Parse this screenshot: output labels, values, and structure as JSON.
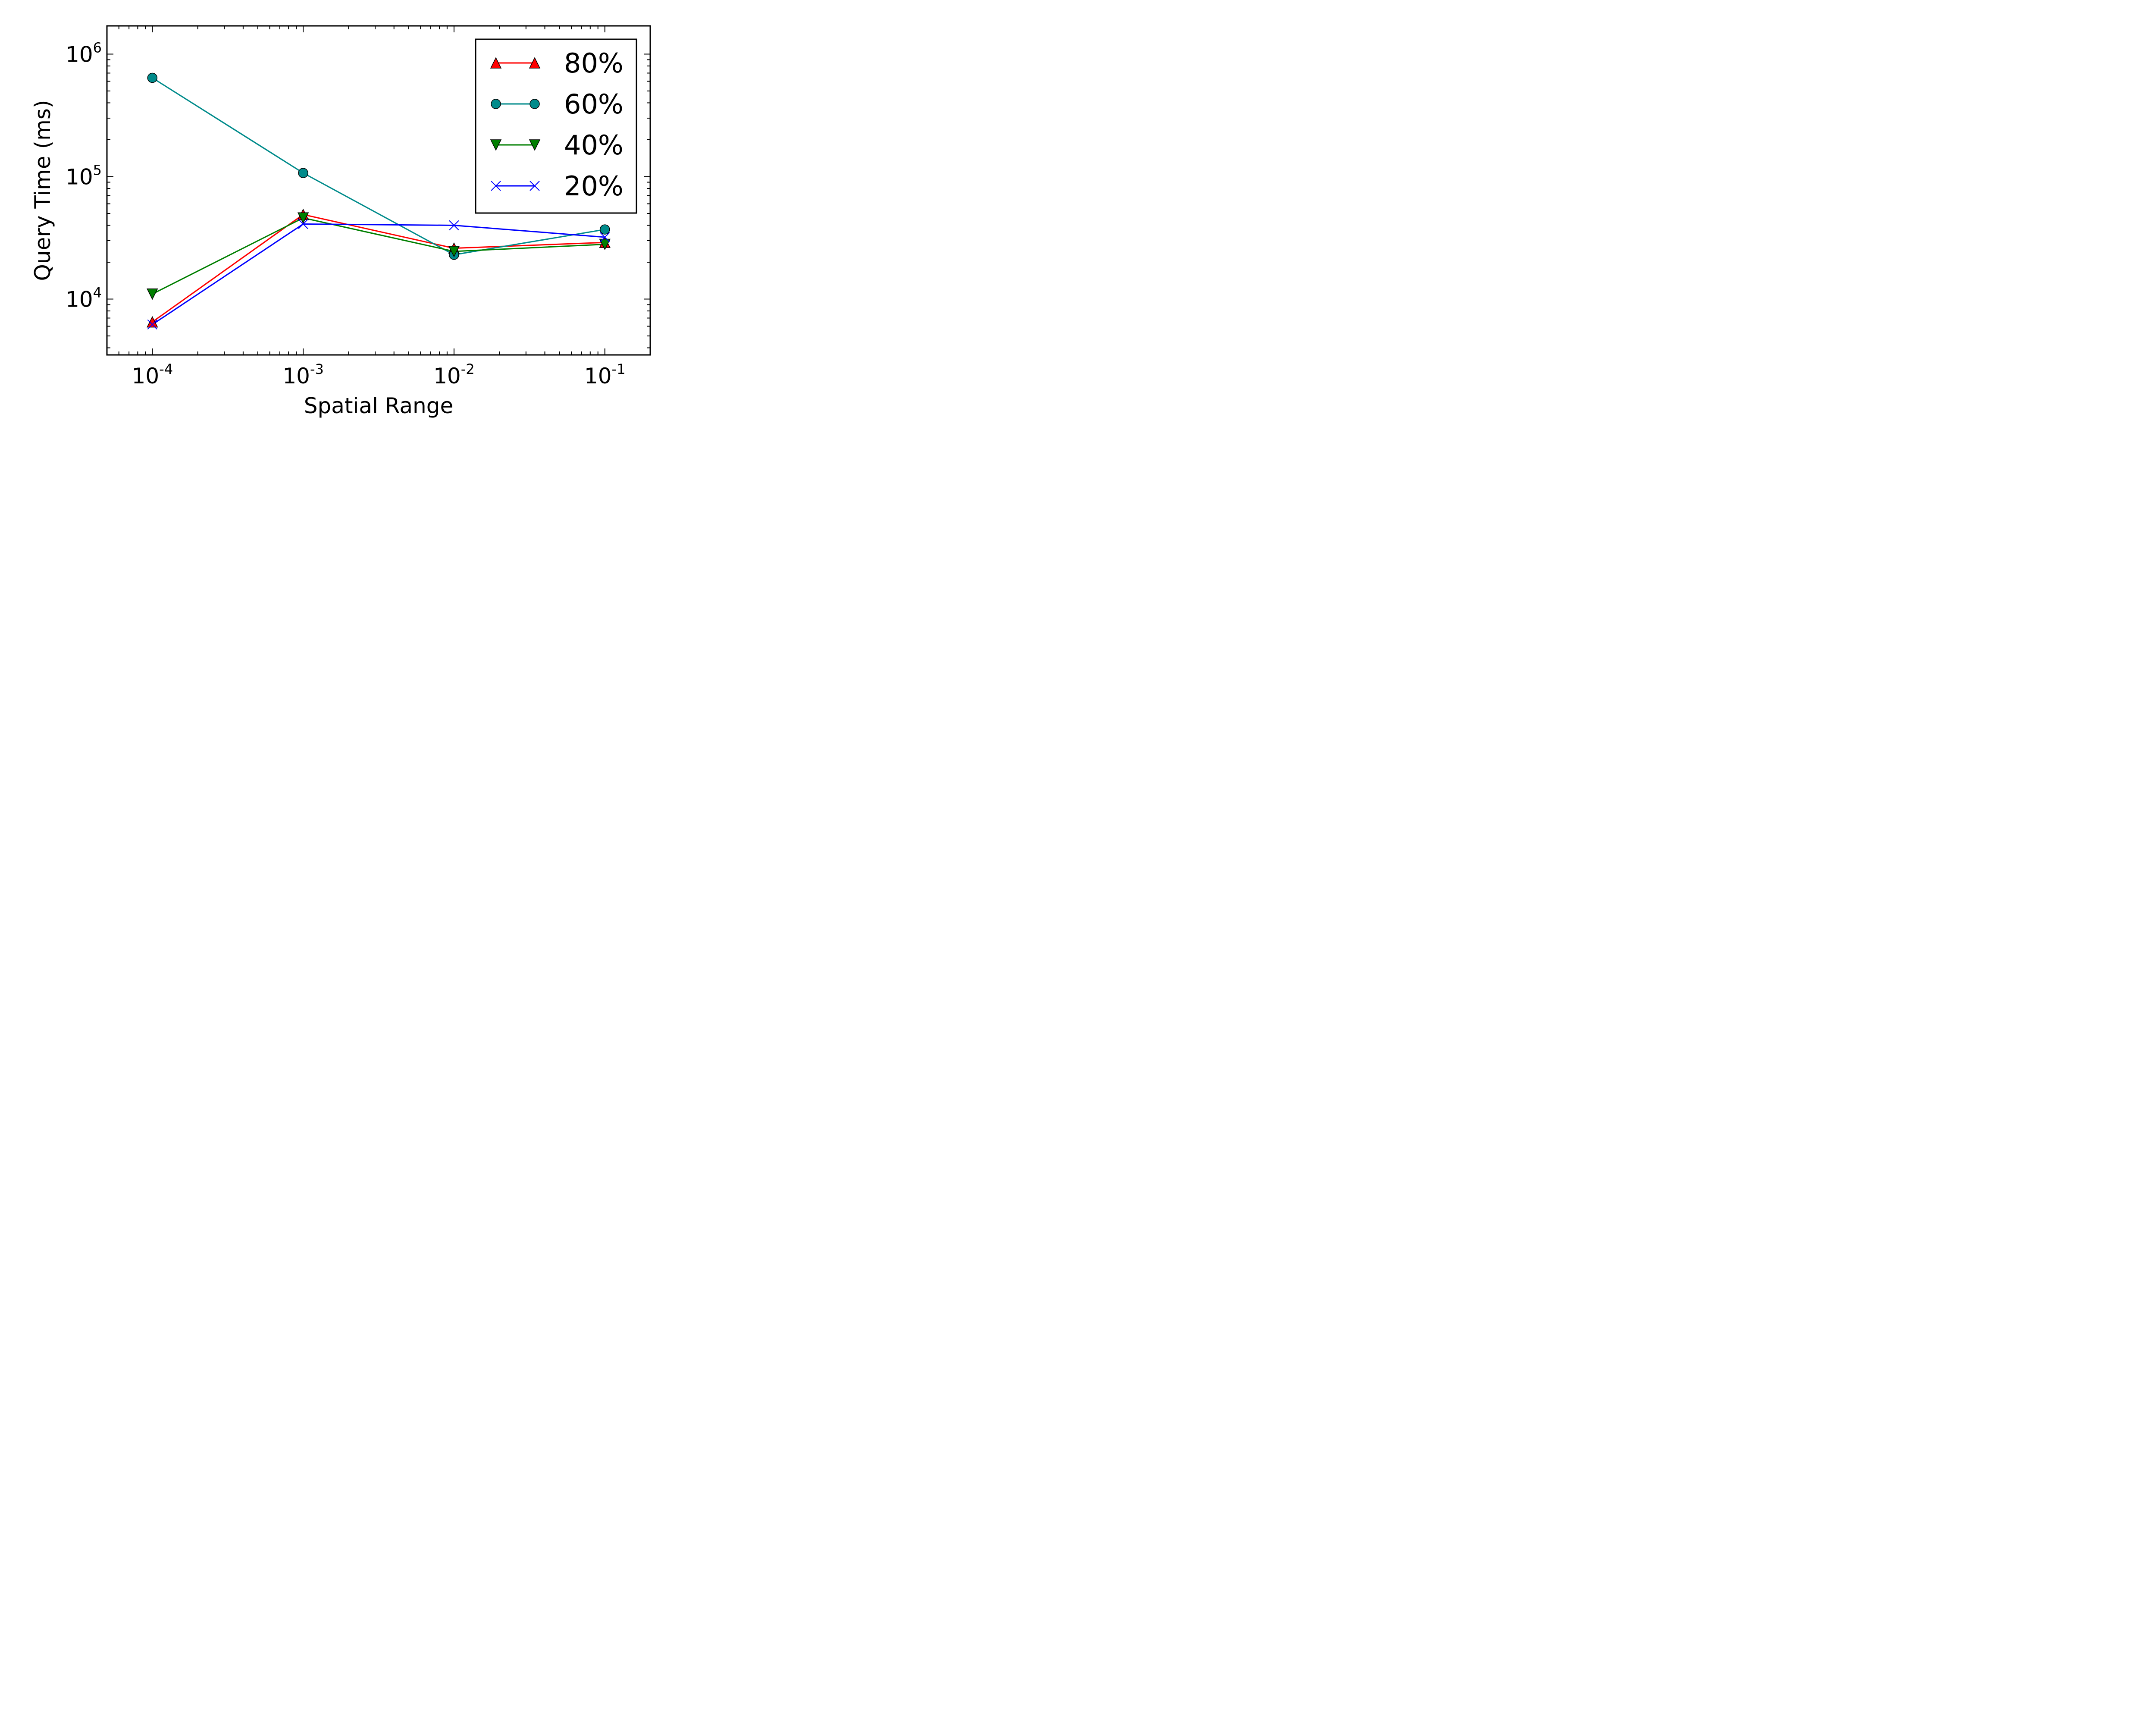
{
  "chart_data": {
    "type": "line",
    "xlabel": "Spatial Range",
    "ylabel": "Query Time (ms)",
    "x_scale": "log",
    "y_scale": "log",
    "xlim": [
      5e-05,
      0.2
    ],
    "ylim": [
      3500,
      1700000
    ],
    "x": [
      0.0001,
      0.001,
      0.01,
      0.1
    ],
    "x_ticks": [
      {
        "value": 0.0001,
        "base": "10",
        "exp": "-4"
      },
      {
        "value": 0.001,
        "base": "10",
        "exp": "-3"
      },
      {
        "value": 0.01,
        "base": "10",
        "exp": "-2"
      },
      {
        "value": 0.1,
        "base": "10",
        "exp": "-1"
      }
    ],
    "y_ticks": [
      {
        "value": 10000,
        "base": "10",
        "exp": "4"
      },
      {
        "value": 100000,
        "base": "10",
        "exp": "5"
      },
      {
        "value": 1000000,
        "base": "10",
        "exp": "6"
      }
    ],
    "legend_position": "top-right",
    "grid": false,
    "series": [
      {
        "name": "80%",
        "color": "#ff0000",
        "marker": "triangle-up",
        "marker_color": "#ff0000",
        "values": [
          6500,
          49000,
          26000,
          29000
        ]
      },
      {
        "name": "60%",
        "color": "#008b8b",
        "marker": "circle",
        "marker_color": "#008b8b",
        "values": [
          640000,
          107000,
          23000,
          37000
        ]
      },
      {
        "name": "40%",
        "color": "#007f00",
        "marker": "triangle-down",
        "marker_color": "#007f00",
        "values": [
          11000,
          46000,
          24500,
          28000
        ]
      },
      {
        "name": "20%",
        "color": "#0000ff",
        "marker": "x",
        "marker_color": "#0000ff",
        "values": [
          6200,
          41000,
          40000,
          32000
        ]
      }
    ]
  }
}
